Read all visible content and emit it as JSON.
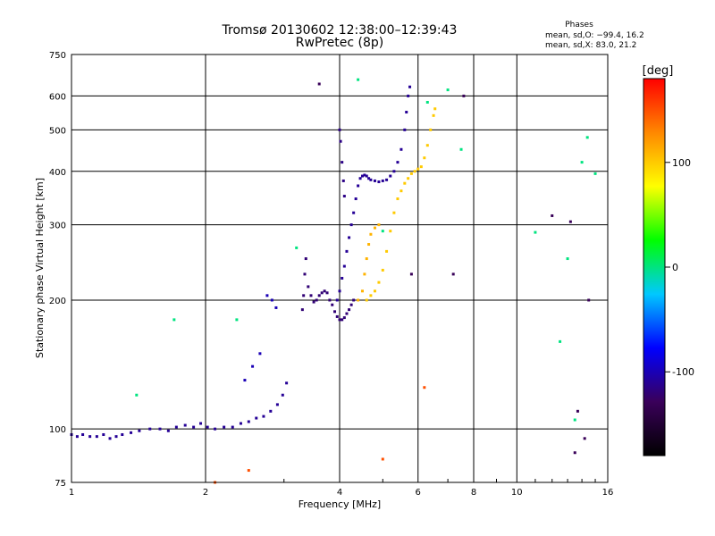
{
  "chart_data": {
    "type": "scatter",
    "title": "Tromsø 20130602 12:38:00–12:39:43",
    "subtitle": "RwPretec (8p)",
    "xlabel": "Frequency [MHz]",
    "ylabel": "Stationary phase Virtual Height [km]",
    "x_scale": "log",
    "y_scale": "log",
    "xlim": [
      1,
      16
    ],
    "ylim": [
      75,
      750
    ],
    "x_ticks": [
      1,
      2,
      4,
      6,
      8,
      10,
      16
    ],
    "y_ticks": [
      75,
      100,
      200,
      300,
      400,
      500,
      600,
      750
    ],
    "grid": true,
    "stats": {
      "heading": "Phases",
      "line_o": "mean, sd,O: −99.4, 16.2",
      "line_x": "mean, sd,X:  83.0, 21.2"
    },
    "colorbar": {
      "label": "[deg]",
      "range": [
        -180,
        180
      ],
      "ticks": [
        100,
        0,
        -100
      ],
      "colormap": [
        "#000000",
        "#3a005a",
        "#0000ff",
        "#00c8ff",
        "#00ff00",
        "#ffff00",
        "#ff8800",
        "#ff0000"
      ]
    },
    "series": [
      {
        "phase": -110,
        "points": [
          [
            1.0,
            97
          ],
          [
            1.03,
            96
          ],
          [
            1.06,
            97
          ],
          [
            1.1,
            96
          ],
          [
            1.14,
            96
          ],
          [
            1.18,
            97
          ],
          [
            1.22,
            95
          ],
          [
            1.26,
            96
          ],
          [
            1.3,
            97
          ],
          [
            1.36,
            98
          ],
          [
            1.42,
            99
          ],
          [
            1.5,
            100
          ],
          [
            1.58,
            100
          ],
          [
            1.65,
            99
          ],
          [
            1.72,
            101
          ],
          [
            1.8,
            102
          ],
          [
            1.88,
            101
          ],
          [
            1.95,
            103
          ],
          [
            2.02,
            101
          ],
          [
            2.1,
            100
          ],
          [
            2.2,
            101
          ],
          [
            2.3,
            101
          ],
          [
            2.4,
            103
          ],
          [
            2.5,
            104
          ],
          [
            2.6,
            106
          ],
          [
            2.7,
            107
          ],
          [
            2.8,
            110
          ],
          [
            2.9,
            114
          ],
          [
            2.98,
            120
          ],
          [
            3.04,
            128
          ]
        ]
      },
      {
        "phase": -100,
        "points": [
          [
            2.45,
            130
          ],
          [
            2.55,
            140
          ],
          [
            2.65,
            150
          ],
          [
            2.75,
            205
          ],
          [
            2.82,
            200
          ],
          [
            2.88,
            192
          ]
        ]
      },
      {
        "phase": -120,
        "points": [
          [
            3.3,
            190
          ],
          [
            3.32,
            205
          ],
          [
            3.34,
            230
          ],
          [
            3.36,
            250
          ],
          [
            3.4,
            215
          ],
          [
            3.45,
            205
          ],
          [
            3.5,
            198
          ],
          [
            3.55,
            200
          ],
          [
            3.6,
            205
          ],
          [
            3.65,
            208
          ],
          [
            3.7,
            210
          ],
          [
            3.75,
            208
          ],
          [
            3.8,
            200
          ],
          [
            3.85,
            195
          ],
          [
            3.9,
            188
          ],
          [
            3.95,
            183
          ],
          [
            4.0,
            180
          ],
          [
            4.05,
            180
          ],
          [
            4.1,
            182
          ],
          [
            4.15,
            186
          ],
          [
            4.2,
            190
          ],
          [
            4.25,
            195
          ],
          [
            4.3,
            200
          ]
        ]
      },
      {
        "phase": -110,
        "points": [
          [
            3.95,
            200
          ],
          [
            4.0,
            210
          ],
          [
            4.05,
            225
          ],
          [
            4.1,
            240
          ],
          [
            4.15,
            260
          ],
          [
            4.2,
            280
          ],
          [
            4.25,
            300
          ],
          [
            4.3,
            320
          ],
          [
            4.35,
            345
          ],
          [
            4.4,
            370
          ],
          [
            4.45,
            385
          ],
          [
            4.5,
            390
          ],
          [
            4.55,
            392
          ],
          [
            4.6,
            390
          ],
          [
            4.65,
            385
          ],
          [
            4.7,
            382
          ],
          [
            4.8,
            380
          ],
          [
            4.9,
            378
          ],
          [
            5.0,
            380
          ],
          [
            5.1,
            382
          ],
          [
            5.2,
            390
          ],
          [
            5.3,
            400
          ],
          [
            5.4,
            420
          ],
          [
            5.5,
            450
          ],
          [
            5.6,
            500
          ],
          [
            5.65,
            550
          ],
          [
            5.7,
            600
          ],
          [
            5.75,
            630
          ]
        ]
      },
      {
        "phase": -115,
        "points": [
          [
            4.0,
            500
          ],
          [
            4.02,
            470
          ],
          [
            4.05,
            420
          ],
          [
            4.08,
            380
          ],
          [
            4.1,
            350
          ]
        ]
      },
      {
        "phase": 100,
        "points": [
          [
            4.6,
            200
          ],
          [
            4.7,
            205
          ],
          [
            4.8,
            210
          ],
          [
            4.9,
            220
          ],
          [
            5.0,
            235
          ],
          [
            5.1,
            260
          ],
          [
            5.2,
            290
          ],
          [
            5.3,
            320
          ],
          [
            5.4,
            345
          ],
          [
            5.5,
            360
          ],
          [
            5.6,
            375
          ],
          [
            5.7,
            385
          ],
          [
            5.8,
            395
          ],
          [
            5.9,
            400
          ],
          [
            6.0,
            405
          ],
          [
            6.1,
            410
          ],
          [
            6.2,
            430
          ],
          [
            6.3,
            460
          ],
          [
            6.4,
            500
          ],
          [
            6.5,
            540
          ],
          [
            6.55,
            560
          ]
        ]
      },
      {
        "phase": 110,
        "points": [
          [
            4.4,
            200
          ],
          [
            4.5,
            210
          ],
          [
            4.55,
            230
          ],
          [
            4.6,
            250
          ],
          [
            4.65,
            270
          ],
          [
            4.7,
            285
          ],
          [
            4.8,
            295
          ],
          [
            4.9,
            300
          ]
        ]
      },
      {
        "phase": 0,
        "points": [
          [
            1.4,
            120
          ],
          [
            1.7,
            180
          ],
          [
            2.35,
            180
          ],
          [
            3.2,
            265
          ],
          [
            4.4,
            655
          ],
          [
            5.0,
            290
          ],
          [
            6.3,
            580
          ],
          [
            7.0,
            620
          ],
          [
            7.5,
            450
          ],
          [
            11.0,
            288
          ],
          [
            14.0,
            420
          ],
          [
            14.4,
            480
          ],
          [
            15.0,
            395
          ],
          [
            13.0,
            250
          ],
          [
            12.5,
            160
          ],
          [
            13.5,
            105
          ]
        ]
      },
      {
        "phase": -130,
        "points": [
          [
            3.6,
            640
          ],
          [
            7.6,
            600
          ],
          [
            12.0,
            315
          ],
          [
            13.2,
            305
          ],
          [
            14.5,
            200
          ],
          [
            14.2,
            95
          ],
          [
            13.5,
            88
          ],
          [
            13.7,
            110
          ],
          [
            7.2,
            230
          ],
          [
            5.8,
            230
          ]
        ]
      },
      {
        "phase": 150,
        "points": [
          [
            6.2,
            125
          ],
          [
            5.0,
            85
          ],
          [
            2.1,
            75
          ],
          [
            2.5,
            80
          ]
        ]
      }
    ]
  }
}
